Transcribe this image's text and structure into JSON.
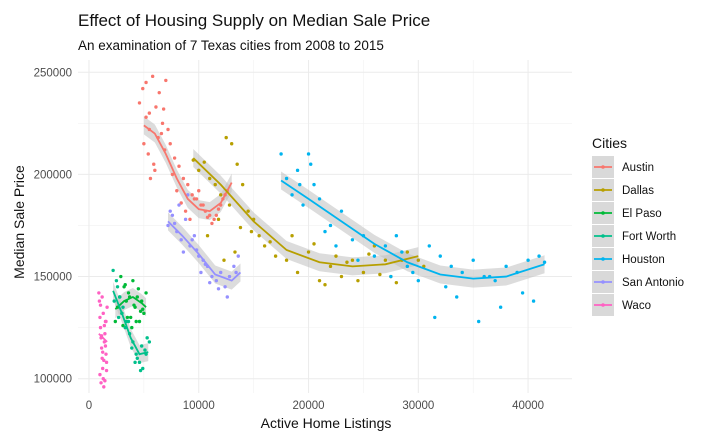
{
  "chart_data": {
    "type": "scatter",
    "title": "Effect of Housing Supply on Median Sale Price",
    "subtitle": "An examination of 7 Texas cities from 2008 to 2015",
    "xlabel": "Active Home Listings",
    "ylabel": "Median Sale Price",
    "xlim": [
      -1000,
      44000
    ],
    "ylim": [
      93000,
      256000
    ],
    "x_ticks": [
      0,
      10000,
      20000,
      30000,
      40000
    ],
    "y_ticks": [
      100000,
      150000,
      200000,
      250000
    ],
    "x_tick_labels": [
      "0",
      "10000",
      "20000",
      "30000",
      "40000"
    ],
    "y_tick_labels": [
      "100000",
      "150000",
      "200000",
      "250000"
    ],
    "grid": true,
    "legend": {
      "title": "Cities",
      "placement": "right"
    },
    "series": [
      {
        "name": "Austin",
        "color": "#F8766D",
        "x": [
          4600,
          4900,
          5200,
          5500,
          5800,
          6100,
          6400,
          6700,
          7000,
          5000,
          5400,
          5900,
          6300,
          6900,
          7200,
          5600,
          6000,
          6600,
          7400,
          7800,
          8200,
          8600,
          9000,
          9400,
          9800,
          10200,
          10600,
          11000,
          11400,
          11800,
          12200,
          12600,
          7600,
          8000,
          8400,
          8800,
          9200,
          9600,
          10000,
          10400,
          10800,
          11200,
          11600,
          12000,
          12400,
          5200,
          5500,
          6800
        ],
        "y": [
          235000,
          242000,
          245000,
          230000,
          248000,
          233000,
          240000,
          225000,
          246000,
          215000,
          210000,
          205000,
          218000,
          212000,
          222000,
          198000,
          202000,
          220000,
          215000,
          208000,
          204000,
          198000,
          195000,
          190000,
          188000,
          185000,
          182000,
          180000,
          178000,
          183000,
          188000,
          192000,
          200000,
          192000,
          186000,
          182000,
          178000,
          188000,
          192000,
          185000,
          179000,
          176000,
          180000,
          185000,
          190000,
          228000,
          222000,
          232000
        ],
        "trend": {
          "x": [
            5000,
            6000,
            7000,
            8000,
            9000,
            10000,
            11000,
            12000,
            13000
          ],
          "y": [
            224000,
            220000,
            210000,
            198000,
            188000,
            183000,
            182000,
            186000,
            196000
          ]
        }
      },
      {
        "name": "Dallas",
        "color": "#B79F00",
        "x": [
          9500,
          10000,
          10500,
          11000,
          11500,
          12000,
          12500,
          13000,
          13500,
          14000,
          14500,
          15000,
          15500,
          16000,
          17000,
          18000,
          19000,
          20000,
          21000,
          22000,
          23000,
          24000,
          25000,
          26000,
          27000,
          28000,
          29000,
          30000,
          10800,
          11800,
          12800,
          13800,
          12300,
          13300,
          14800,
          16500,
          18500,
          20500,
          22500,
          24500,
          26500,
          28500,
          30500,
          21500,
          23500,
          25500,
          27500
        ],
        "y": [
          207000,
          202000,
          206000,
          198000,
          195000,
          190000,
          218000,
          215000,
          205000,
          195000,
          182000,
          178000,
          170000,
          165000,
          160000,
          158000,
          152000,
          162000,
          148000,
          155000,
          150000,
          158000,
          152000,
          165000,
          158000,
          147000,
          162000,
          158000,
          170000,
          178000,
          185000,
          174000,
          158000,
          162000,
          172000,
          167000,
          170000,
          166000,
          160000,
          148000,
          151000,
          158000,
          155000,
          146000,
          157000,
          161000,
          150000
        ],
        "trend": {
          "x": [
            9500,
            12000,
            15000,
            18000,
            21000,
            24000,
            27000,
            30000
          ],
          "y": [
            208000,
            195000,
            177000,
            163000,
            157000,
            155000,
            156000,
            160000
          ]
        }
      },
      {
        "name": "El Paso",
        "color": "#00BA38",
        "x": [
          2400,
          2600,
          2800,
          3000,
          3200,
          3400,
          3600,
          3800,
          4000,
          4200,
          4400,
          4600,
          4800,
          5000,
          5200,
          2900,
          3300,
          3700,
          4100,
          4500,
          4900,
          3100,
          3500,
          3900,
          4300,
          4700
        ],
        "y": [
          128000,
          135000,
          140000,
          132000,
          145000,
          138000,
          142000,
          130000,
          148000,
          135000,
          140000,
          128000,
          138000,
          132000,
          142000,
          150000,
          146000,
          140000,
          136000,
          144000,
          134000,
          126000,
          130000,
          125000,
          128000,
          133000
        ],
        "trend": {
          "x": [
            2400,
            3200,
            4000,
            4800,
            5200
          ],
          "y": [
            134000,
            138000,
            140000,
            137000,
            135000
          ]
        }
      },
      {
        "name": "Fort Worth",
        "color": "#00C08B",
        "x": [
          2200,
          2500,
          2800,
          3100,
          3400,
          3700,
          4000,
          4300,
          4600,
          4900,
          5200,
          5500,
          2300,
          2700,
          3300,
          3900,
          4400,
          4800,
          5300,
          2600,
          3000,
          3600,
          4200,
          4700,
          5100
        ],
        "y": [
          153000,
          148000,
          140000,
          135000,
          128000,
          122000,
          118000,
          112000,
          108000,
          105000,
          112000,
          118000,
          138000,
          130000,
          125000,
          115000,
          110000,
          116000,
          120000,
          145000,
          132000,
          128000,
          108000,
          104000,
          114000
        ],
        "trend": {
          "x": [
            2200,
            3000,
            3800,
            4600,
            5400
          ],
          "y": [
            143000,
            132000,
            120000,
            112000,
            113000
          ]
        }
      },
      {
        "name": "Houston",
        "color": "#00B4EF",
        "x": [
          17500,
          18000,
          18500,
          19000,
          19500,
          20000,
          20500,
          21000,
          22000,
          23000,
          24000,
          25000,
          26000,
          27000,
          28000,
          29000,
          30000,
          31000,
          32000,
          33000,
          34000,
          35000,
          36000,
          37000,
          38000,
          39000,
          40000,
          41000,
          41500,
          19200,
          20200,
          21500,
          22500,
          24500,
          27500,
          29500,
          31500,
          33500,
          35500,
          37500,
          39500,
          28500,
          32500,
          36500,
          40500
        ],
        "y": [
          210000,
          198000,
          190000,
          202000,
          185000,
          210000,
          195000,
          188000,
          175000,
          182000,
          168000,
          170000,
          160000,
          165000,
          170000,
          155000,
          148000,
          165000,
          160000,
          155000,
          152000,
          158000,
          150000,
          148000,
          155000,
          152000,
          158000,
          160000,
          157000,
          195000,
          205000,
          172000,
          165000,
          158000,
          150000,
          152000,
          130000,
          140000,
          128000,
          135000,
          142000,
          162000,
          145000,
          150000,
          138000
        ],
        "trend": {
          "x": [
            17500,
            20000,
            23000,
            26000,
            29000,
            32000,
            35000,
            38000,
            41500
          ],
          "y": [
            197000,
            188000,
            177000,
            166000,
            157000,
            151000,
            149000,
            150000,
            156000
          ]
        }
      },
      {
        "name": "San Antonio",
        "color": "#9590FF",
        "x": [
          7200,
          7600,
          8000,
          8400,
          8800,
          9200,
          9600,
          10000,
          10400,
          10800,
          11200,
          11600,
          12000,
          12400,
          12800,
          13200,
          13600,
          7400,
          7800,
          8600,
          9400,
          10200,
          11000,
          11800,
          12600,
          13400,
          8200,
          9000,
          9800,
          10600
        ],
        "y": [
          175000,
          180000,
          172000,
          168000,
          178000,
          165000,
          170000,
          160000,
          158000,
          155000,
          150000,
          148000,
          152000,
          145000,
          150000,
          155000,
          160000,
          182000,
          176000,
          162000,
          168000,
          152000,
          147000,
          144000,
          140000,
          152000,
          185000,
          190000,
          163000,
          156000
        ],
        "trend": {
          "x": [
            7200,
            8500,
            10000,
            11500,
            13000,
            13800
          ],
          "y": [
            177000,
            170000,
            161000,
            151000,
            148000,
            152000
          ]
        }
      },
      {
        "name": "Waco",
        "color": "#FF61C3",
        "x": [
          900,
          950,
          1000,
          1050,
          1100,
          1150,
          1200,
          1250,
          1300,
          1350,
          1400,
          1450,
          1500,
          1550,
          1600,
          1650,
          1000,
          1100,
          1200,
          1300,
          1400,
          1500,
          1600,
          1050,
          1150,
          1250,
          1350,
          1450,
          1550
        ],
        "y": [
          142000,
          138000,
          130000,
          125000,
          120000,
          115000,
          110000,
          105000,
          100000,
          96000,
          118000,
          122000,
          128000,
          112000,
          108000,
          135000,
          102000,
          98000,
          140000,
          132000,
          126000,
          116000,
          104000,
          136000,
          121000,
          113000,
          109000,
          99000,
          128000
        ],
        "trend": {
          "x": [
            900,
            1650
          ],
          "y": [
            122000,
            118000
          ]
        }
      }
    ]
  }
}
